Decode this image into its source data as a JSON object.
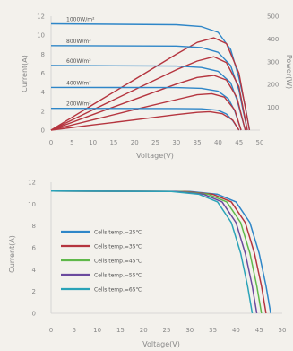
{
  "chart_data": [
    {
      "type": "line",
      "xlabel": "Voltage(V)",
      "ylabel": "Current(A)",
      "y2label": "Power(W)",
      "xlim": [
        0,
        50
      ],
      "ylim": [
        0,
        12
      ],
      "y2lim": [
        0,
        500
      ],
      "xticks": [
        0,
        5,
        10,
        15,
        20,
        25,
        30,
        35,
        40,
        45,
        50
      ],
      "yticks": [
        0,
        2,
        4,
        6,
        8,
        10,
        12
      ],
      "y2ticks": [
        0,
        100,
        200,
        300,
        400,
        500
      ],
      "grid": false,
      "colors": {
        "current": "#2e86c8",
        "power": "#b5353f"
      },
      "series": [
        {
          "name": "1000W/m²",
          "current": {
            "x": [
              0,
              30,
              36,
              40,
              43,
              45,
              46.5,
              47.5
            ],
            "y": [
              11.2,
              11.1,
              10.9,
              10.3,
              8.5,
              5.5,
              2.5,
              0
            ]
          },
          "power": {
            "x": [
              0,
              10,
              20,
              30,
              35,
              39,
              42,
              45,
              47.5
            ],
            "y": [
              0,
              112,
              222,
              333,
              385,
              405,
              380,
              250,
              0
            ]
          }
        },
        {
          "name": "800W/m²",
          "current": {
            "x": [
              0,
              30,
              36,
              40,
              43,
              45,
              46,
              47
            ],
            "y": [
              8.9,
              8.85,
              8.7,
              8.2,
              6.8,
              4.2,
              2,
              0
            ]
          },
          "power": {
            "x": [
              0,
              10,
              20,
              30,
              35,
              39,
              42,
              45,
              47
            ],
            "y": [
              0,
              89,
              177,
              265,
              303,
              322,
              296,
              190,
              0
            ]
          }
        },
        {
          "name": "600W/m²",
          "current": {
            "x": [
              0,
              30,
              36,
              40,
              43,
              44.5,
              46.5
            ],
            "y": [
              6.8,
              6.75,
              6.6,
              6.2,
              5,
              3.2,
              0
            ]
          },
          "power": {
            "x": [
              0,
              10,
              20,
              30,
              35,
              39,
              42,
              44.5,
              46.5
            ],
            "y": [
              0,
              68,
              135,
              202,
              231,
              240,
              220,
              143,
              0
            ]
          }
        },
        {
          "name": "400W/m²",
          "current": {
            "x": [
              0,
              30,
              36,
              40,
              42.5,
              44,
              45.5
            ],
            "y": [
              4.5,
              4.48,
              4.4,
              4.1,
              3.3,
              2,
              0
            ]
          },
          "power": {
            "x": [
              0,
              10,
              20,
              30,
              35,
              38.5,
              41.5,
              44,
              45.5
            ],
            "y": [
              0,
              45,
              90,
              134,
              155,
              160,
              145,
              88,
              0
            ]
          }
        },
        {
          "name": "200W/m²",
          "current": {
            "x": [
              0,
              30,
              36,
              40,
              42,
              43.5,
              45
            ],
            "y": [
              2.3,
              2.28,
              2.25,
              2.1,
              1.7,
              1,
              0
            ]
          },
          "power": {
            "x": [
              0,
              10,
              20,
              30,
              35,
              38,
              41,
              43.5,
              45
            ],
            "y": [
              0,
              23,
              45,
              68,
              78,
              81,
              72,
              44,
              0
            ]
          }
        }
      ]
    },
    {
      "type": "line",
      "xlabel": "Voltage(V)",
      "ylabel": "Current(A)",
      "xlim": [
        0,
        50
      ],
      "ylim": [
        0,
        12
      ],
      "xticks": [
        0,
        5,
        10,
        15,
        20,
        25,
        30,
        35,
        40,
        45,
        50
      ],
      "yticks": [
        0,
        2,
        4,
        6,
        8,
        10,
        12
      ],
      "grid": false,
      "legend_position": "center-left",
      "series": [
        {
          "name": "Cells temp.=25℃",
          "color": "#2e86c8",
          "x": [
            0,
            30,
            36,
            40,
            43,
            45,
            46.5,
            47.5
          ],
          "y": [
            11.2,
            11.15,
            10.9,
            10.2,
            8.3,
            5.5,
            2.5,
            0
          ]
        },
        {
          "name": "Cells temp.=35℃",
          "color": "#b5353f",
          "x": [
            0,
            29,
            35,
            39,
            42,
            44,
            45.5,
            46.5
          ],
          "y": [
            11.2,
            11.15,
            10.9,
            10.2,
            8.3,
            5.5,
            2.5,
            0
          ]
        },
        {
          "name": "Cells temp.=45℃",
          "color": "#5fb84a",
          "x": [
            0,
            28,
            34,
            38,
            41,
            43,
            44.5,
            45.5
          ],
          "y": [
            11.2,
            11.15,
            10.9,
            10.2,
            8.3,
            5.5,
            2.5,
            0
          ]
        },
        {
          "name": "Cells temp.=55℃",
          "color": "#6b4a9e",
          "x": [
            0,
            27,
            33,
            37,
            40,
            42,
            43.5,
            44.5
          ],
          "y": [
            11.2,
            11.15,
            10.9,
            10.2,
            8.3,
            5.5,
            2.5,
            0
          ]
        },
        {
          "name": "Cells temp.=65℃",
          "color": "#2aa3b8",
          "x": [
            0,
            26,
            32,
            36,
            39,
            41,
            42.5,
            43.5
          ],
          "y": [
            11.2,
            11.15,
            10.9,
            10.2,
            8.3,
            5.5,
            2.5,
            0
          ]
        }
      ]
    }
  ]
}
